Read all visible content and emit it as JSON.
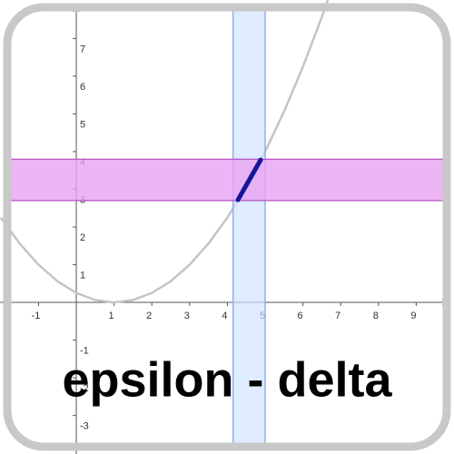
{
  "chart_data": {
    "type": "line",
    "title": "epsilon - delta",
    "xlim": [
      -2.02,
      10
    ],
    "ylim": [
      -4.02,
      8.02
    ],
    "xticks": [
      -1,
      1,
      2,
      3,
      4,
      5,
      6,
      7,
      8,
      9
    ],
    "yticks": [
      -3,
      -2,
      -1,
      1,
      2,
      3,
      4,
      5,
      6,
      7
    ],
    "series": [
      {
        "color": "#c4c4c4",
        "x": [
          -2,
          -1.5,
          -1,
          -0.5,
          0,
          0.5,
          1,
          1.5,
          2,
          2.5,
          3,
          3.5,
          4,
          4.5,
          5,
          5.5,
          6,
          6.5,
          7
        ],
        "values": [
          2.25,
          1.5625,
          1,
          0.5625,
          0.25,
          0.0625,
          0,
          0.0625,
          0.25,
          0.5625,
          1,
          1.5625,
          2.25,
          3.0625,
          4,
          5.0625,
          6.25,
          7.5625,
          9
        ]
      }
    ],
    "x_band": [
      4.15,
      5.0
    ],
    "x_band_color": "#cfe2ff",
    "y_band": [
      2.7,
      3.8
    ],
    "y_band_color": "#e9a3f2",
    "segment": {
      "x": [
        4.28,
        4.88
      ],
      "values": [
        2.72,
        3.78
      ],
      "color": "#16169a"
    }
  }
}
